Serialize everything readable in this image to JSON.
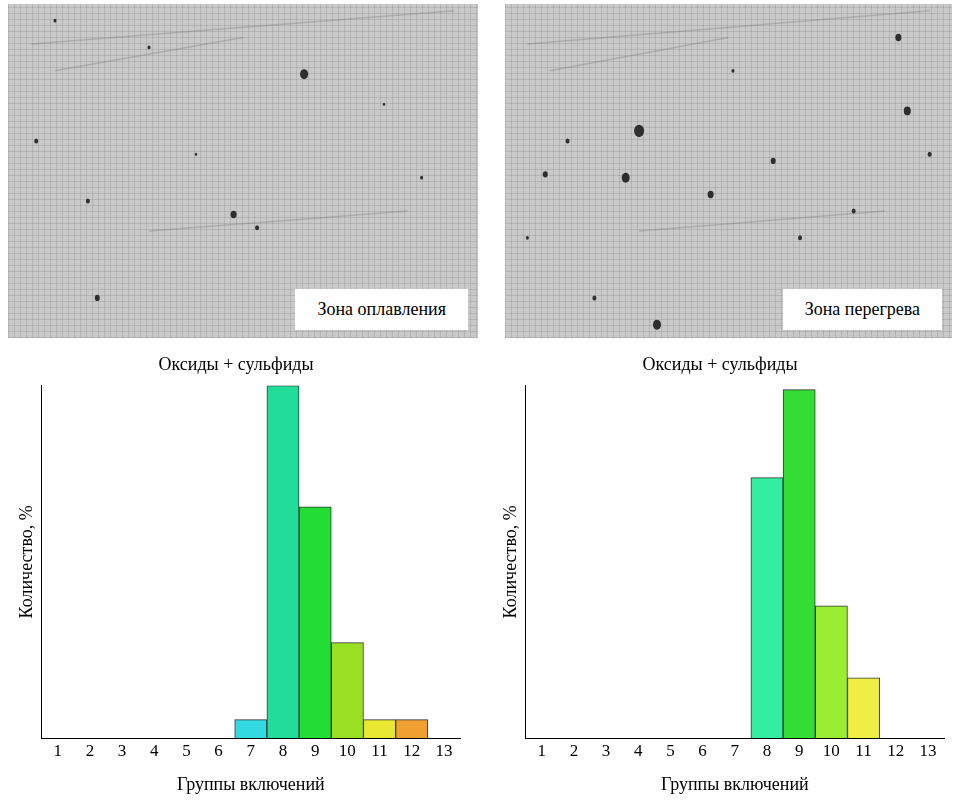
{
  "images": [
    {
      "caption": "Зона оплавления"
    },
    {
      "caption": "Зона перегрева"
    }
  ],
  "chart_data": [
    {
      "type": "bar",
      "title": "Оксиды + сульфиды",
      "x_label": "Группы включений",
      "y_label": "Количество, %",
      "categories": [
        "1",
        "2",
        "3",
        "4",
        "5",
        "6",
        "7",
        "8",
        "9",
        "10",
        "11",
        "12",
        "13"
      ],
      "values": [
        null,
        null,
        null,
        null,
        null,
        null,
        2.5,
        48,
        31.5,
        13,
        2.5,
        2.5,
        null
      ],
      "colors": [
        null,
        null,
        null,
        null,
        null,
        null,
        "#33d9e0",
        "#22dd99",
        "#22dd33",
        "#99e022",
        "#e8e833",
        "#f0a030",
        null
      ],
      "ylim": [
        0,
        48
      ],
      "tick_labels": "x",
      "grid": false
    },
    {
      "type": "bar",
      "title": "Оксиды + сульфиды",
      "x_label": "Группы включений",
      "y_label": "Количество, %",
      "categories": [
        "1",
        "2",
        "3",
        "4",
        "5",
        "6",
        "7",
        "8",
        "9",
        "10",
        "11",
        "12",
        "13"
      ],
      "values": [
        null,
        null,
        null,
        null,
        null,
        null,
        null,
        32.5,
        43.5,
        16.5,
        7.5,
        null,
        null
      ],
      "colors": [
        null,
        null,
        null,
        null,
        null,
        null,
        null,
        "#33eea0",
        "#33dd33",
        "#99ee33",
        "#eeee44",
        null,
        null
      ],
      "ylim": [
        0,
        44
      ],
      "tick_labels": "x",
      "grid": false
    }
  ]
}
